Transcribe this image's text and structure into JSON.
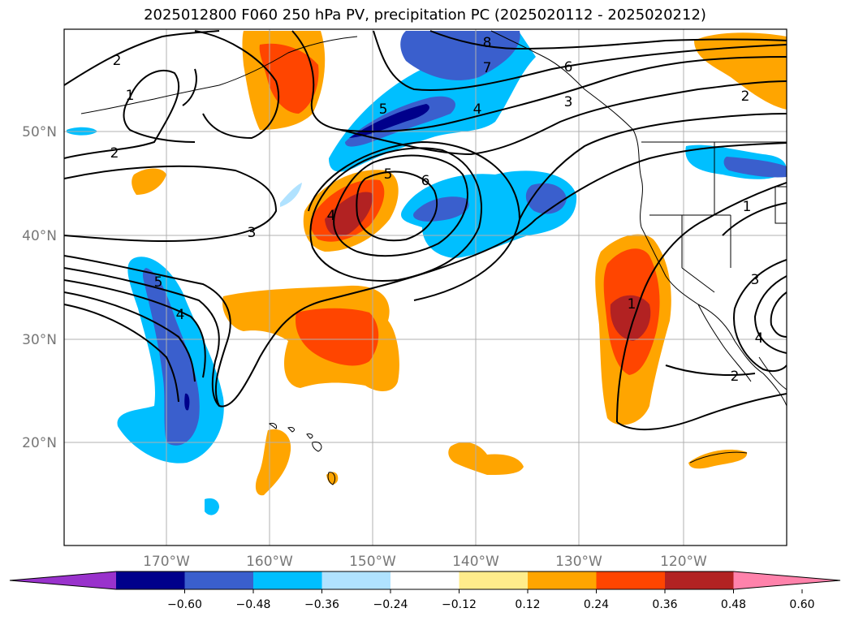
{
  "title": "2025012800 F060 250 hPa PV, precipitation PC (2025020112 - 2025020212)",
  "lat_labels": [
    "50°N",
    "40°N",
    "30°N",
    "20°N"
  ],
  "lon_labels": [
    "170°W",
    "160°W",
    "150°W",
    "140°W",
    "130°W",
    "120°W"
  ],
  "colorbar": {
    "ticks": [
      "−0.60",
      "−0.48",
      "−0.36",
      "−0.24",
      "−0.12",
      "0.12",
      "0.24",
      "0.36",
      "0.48",
      "0.60"
    ],
    "colors": [
      "#9932CC",
      "#00008B",
      "#3A5FCD",
      "#00BFFF",
      "#B0E2FF",
      "#FFFFFF",
      "#FFEC8B",
      "#FFA500",
      "#FF4500",
      "#B22222",
      "#FF82AB"
    ]
  },
  "contour_labels": [
    "2",
    "1",
    "2",
    "3",
    "5",
    "4",
    "5",
    "4",
    "6",
    "5",
    "4",
    "8",
    "7",
    "6",
    "3",
    "2",
    "1",
    "3",
    "1",
    "2",
    "4"
  ],
  "colors": {
    "grid": "#b0b0b0",
    "coast": "#000000",
    "contour": "#000000"
  }
}
